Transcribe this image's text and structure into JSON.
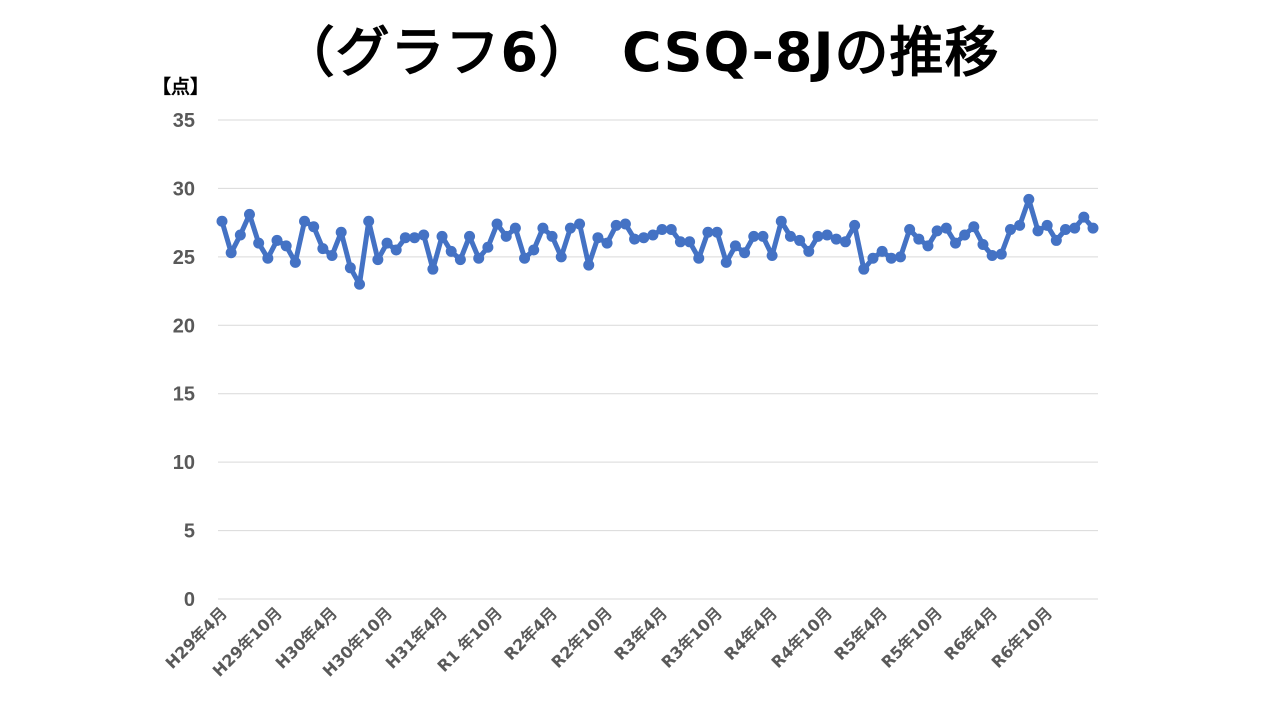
{
  "chart_data": {
    "type": "line",
    "title": "（グラフ6）　CSQ-8Jの推移",
    "ylabel": "【点】",
    "xlabel": "",
    "ylim": [
      0,
      35
    ],
    "yticks": [
      0,
      5,
      10,
      15,
      20,
      25,
      30,
      35
    ],
    "grid": true,
    "legend": "none",
    "color": "#4472C4",
    "xtick_labels": [
      "H29年4月",
      "H29年10月",
      "H30年4月",
      "H30年10月",
      "H31年4月",
      "R1 年10月",
      "R2年4月",
      "R2年10月",
      "R3年4月",
      "R3年10月",
      "R4年4月",
      "R4年10月",
      "R5年4月",
      "R5年10月",
      "R6年4月",
      "R6年10月"
    ],
    "xtick_every": 6,
    "values": [
      27.6,
      25.3,
      26.6,
      28.1,
      26.0,
      24.9,
      26.2,
      25.8,
      24.6,
      27.6,
      27.2,
      25.6,
      25.1,
      26.8,
      24.2,
      23.0,
      27.6,
      24.8,
      26.0,
      25.5,
      26.4,
      26.4,
      26.6,
      24.1,
      26.5,
      25.4,
      24.8,
      26.5,
      24.9,
      25.7,
      27.4,
      26.5,
      27.1,
      24.9,
      25.5,
      27.1,
      26.5,
      25.0,
      27.1,
      27.4,
      24.4,
      26.4,
      26.0,
      27.3,
      27.4,
      26.3,
      26.4,
      26.6,
      27.0,
      27.0,
      26.1,
      26.1,
      24.9,
      26.8,
      26.8,
      24.6,
      25.8,
      25.3,
      26.5,
      26.5,
      25.1,
      27.6,
      26.5,
      26.2,
      25.4,
      26.5,
      26.6,
      26.3,
      26.1,
      27.3,
      24.1,
      24.9,
      25.4,
      24.9,
      25.0,
      27.0,
      26.3,
      25.8,
      26.9,
      27.1,
      26.0,
      26.6,
      27.2,
      25.9,
      25.1,
      25.2,
      27.0,
      27.3,
      29.2,
      26.9,
      27.3,
      26.2,
      27.0,
      27.1,
      27.9,
      27.1
    ]
  }
}
